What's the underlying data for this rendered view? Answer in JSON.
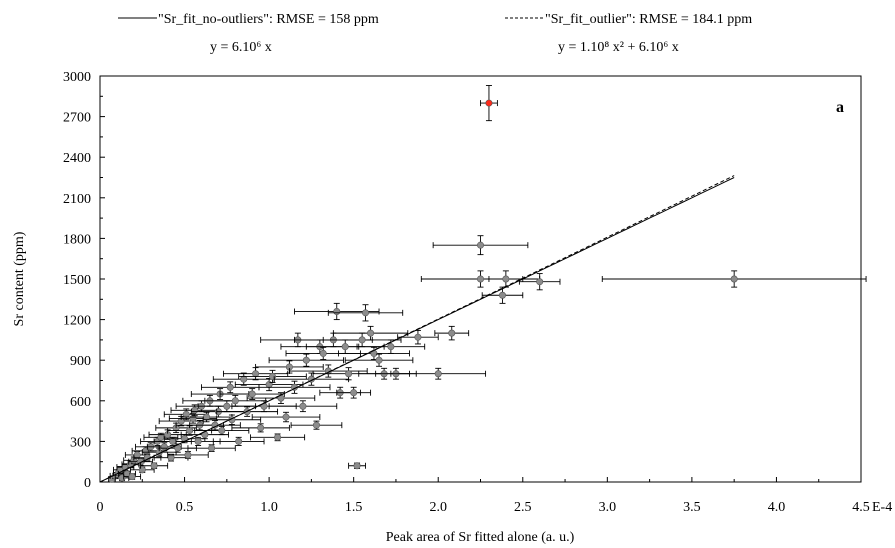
{
  "chart_data": {
    "type": "scatter",
    "title": "",
    "panel_label": "a",
    "xlabel": "Peak area of Sr fitted alone (a. u.)",
    "ylabel": "Sr content (ppm)",
    "x_unit_suffix": "E-4",
    "xlim": [
      0,
      4.5
    ],
    "ylim": [
      0,
      3000
    ],
    "x_ticks": [
      0,
      0.5,
      1.0,
      1.5,
      2.0,
      2.5,
      3.0,
      3.5,
      4.0,
      4.5
    ],
    "x_tick_labels": [
      "0",
      "0.5",
      "1.0",
      "1.5",
      "2.0",
      "2.5",
      "3.0",
      "3.5",
      "4.0",
      "4.5"
    ],
    "y_ticks": [
      0,
      300,
      600,
      900,
      1200,
      1500,
      1800,
      2100,
      2400,
      2700,
      3000
    ],
    "y_tick_labels": [
      "0",
      "300",
      "600",
      "900",
      "1200",
      "1500",
      "1800",
      "2100",
      "2400",
      "2700",
      "3000"
    ],
    "grid": false,
    "legend": {
      "position": "top",
      "entries": [
        {
          "style": "solid",
          "label": "\"Sr_fit_no-outliers\": RMSE = 158 ppm",
          "equation": "y = 6.10⁶ x"
        },
        {
          "style": "dashed",
          "label": "\"Sr_fit_outlier\": RMSE = 184.1 ppm",
          "equation": "y = 1.10⁸ x² + 6.10⁶ x"
        }
      ]
    },
    "series": [
      {
        "name": "measurements",
        "color": "#8c8c8c",
        "points": [
          [
            0.07,
            20,
            0.02,
            20
          ],
          [
            0.09,
            45,
            0.03,
            20
          ],
          [
            0.11,
            70,
            0.03,
            20
          ],
          [
            0.13,
            30,
            0.04,
            20
          ],
          [
            0.12,
            90,
            0.04,
            25
          ],
          [
            0.15,
            110,
            0.05,
            25
          ],
          [
            0.16,
            60,
            0.05,
            20
          ],
          [
            0.18,
            130,
            0.05,
            25
          ],
          [
            0.2,
            160,
            0.06,
            25
          ],
          [
            0.19,
            40,
            0.05,
            20
          ],
          [
            0.22,
            200,
            0.07,
            25
          ],
          [
            0.24,
            150,
            0.07,
            25
          ],
          [
            0.25,
            90,
            0.07,
            20
          ],
          [
            0.27,
            230,
            0.08,
            30
          ],
          [
            0.28,
            180,
            0.08,
            25
          ],
          [
            0.3,
            260,
            0.09,
            30
          ],
          [
            0.32,
            120,
            0.08,
            20
          ],
          [
            0.34,
            300,
            0.1,
            30
          ],
          [
            0.35,
            220,
            0.1,
            30
          ],
          [
            0.36,
            330,
            0.1,
            30
          ],
          [
            0.38,
            260,
            0.1,
            30
          ],
          [
            0.4,
            350,
            0.11,
            35
          ],
          [
            0.42,
            180,
            0.1,
            25
          ],
          [
            0.43,
            300,
            0.11,
            30
          ],
          [
            0.45,
            400,
            0.12,
            35
          ],
          [
            0.46,
            250,
            0.11,
            30
          ],
          [
            0.48,
            450,
            0.13,
            35
          ],
          [
            0.5,
            320,
            0.12,
            30
          ],
          [
            0.51,
            500,
            0.13,
            40
          ],
          [
            0.52,
            200,
            0.12,
            25
          ],
          [
            0.53,
            380,
            0.13,
            35
          ],
          [
            0.55,
            470,
            0.14,
            35
          ],
          [
            0.56,
            530,
            0.14,
            40
          ],
          [
            0.58,
            300,
            0.13,
            30
          ],
          [
            0.59,
            420,
            0.14,
            35
          ],
          [
            0.6,
            560,
            0.15,
            40
          ],
          [
            0.62,
            350,
            0.14,
            30
          ],
          [
            0.63,
            480,
            0.15,
            35
          ],
          [
            0.65,
            600,
            0.16,
            40
          ],
          [
            0.66,
            250,
            0.14,
            25
          ],
          [
            0.68,
            420,
            0.15,
            35
          ],
          [
            0.7,
            520,
            0.16,
            40
          ],
          [
            0.71,
            650,
            0.17,
            40
          ],
          [
            0.72,
            380,
            0.16,
            30
          ],
          [
            0.75,
            560,
            0.17,
            40
          ],
          [
            0.77,
            700,
            0.17,
            40
          ],
          [
            0.78,
            460,
            0.17,
            35
          ],
          [
            0.8,
            600,
            0.18,
            40
          ],
          [
            0.82,
            300,
            0.15,
            30
          ],
          [
            0.85,
            760,
            0.18,
            45
          ],
          [
            0.87,
            520,
            0.18,
            35
          ],
          [
            0.9,
            650,
            0.19,
            40
          ],
          [
            0.92,
            800,
            0.19,
            45
          ],
          [
            0.95,
            400,
            0.17,
            30
          ],
          [
            0.97,
            560,
            0.19,
            40
          ],
          [
            1.0,
            720,
            0.2,
            45
          ],
          [
            1.02,
            780,
            0.2,
            45
          ],
          [
            1.05,
            330,
            0.16,
            25
          ],
          [
            1.07,
            620,
            0.2,
            40
          ],
          [
            1.1,
            480,
            0.2,
            35
          ],
          [
            1.12,
            850,
            0.2,
            45
          ],
          [
            1.15,
            700,
            0.21,
            45
          ],
          [
            1.17,
            1050,
            0.22,
            50
          ],
          [
            1.2,
            560,
            0.2,
            40
          ],
          [
            1.22,
            900,
            0.22,
            45
          ],
          [
            1.25,
            760,
            0.22,
            45
          ],
          [
            1.28,
            420,
            0.15,
            30
          ],
          [
            1.3,
            1000,
            0.23,
            50
          ],
          [
            1.32,
            950,
            0.22,
            45
          ],
          [
            1.35,
            820,
            0.23,
            45
          ],
          [
            1.38,
            1050,
            0.23,
            50
          ],
          [
            1.4,
            1260,
            0.25,
            60
          ],
          [
            1.42,
            660,
            0.12,
            40
          ],
          [
            1.45,
            1000,
            0.23,
            50
          ],
          [
            1.47,
            800,
            0.21,
            45
          ],
          [
            1.5,
            660,
            0.1,
            40
          ],
          [
            1.52,
            120,
            0.05,
            20
          ],
          [
            1.55,
            1050,
            0.23,
            50
          ],
          [
            1.57,
            1250,
            0.22,
            60
          ],
          [
            1.6,
            1100,
            0.22,
            50
          ],
          [
            1.62,
            950,
            0.21,
            45
          ],
          [
            1.65,
            900,
            0.2,
            45
          ],
          [
            1.68,
            800,
            0.15,
            40
          ],
          [
            1.72,
            1000,
            0.2,
            50
          ],
          [
            1.75,
            800,
            0.12,
            40
          ],
          [
            1.88,
            1070,
            0.12,
            50
          ],
          [
            2.0,
            800,
            0.28,
            40
          ],
          [
            2.08,
            1100,
            0.1,
            50
          ],
          [
            2.25,
            1500,
            0.35,
            60
          ],
          [
            2.25,
            1750,
            0.28,
            70
          ],
          [
            2.38,
            1380,
            0.12,
            60
          ],
          [
            2.4,
            1500,
            0.1,
            60
          ],
          [
            2.6,
            1480,
            0.12,
            60
          ],
          [
            3.75,
            1500,
            0.78,
            60
          ]
        ]
      },
      {
        "name": "outlier",
        "color": "#ff2a1a",
        "points": [
          [
            2.3,
            2800,
            0.05,
            130
          ]
        ]
      }
    ],
    "fit_lines": [
      {
        "style": "solid",
        "coef_x": 6,
        "coef_x2": 0,
        "x_range": [
          0,
          3.75
        ]
      },
      {
        "style": "dashed",
        "coef_x": 6,
        "coef_x2": 1,
        "x_range": [
          0,
          3.75
        ]
      }
    ]
  }
}
